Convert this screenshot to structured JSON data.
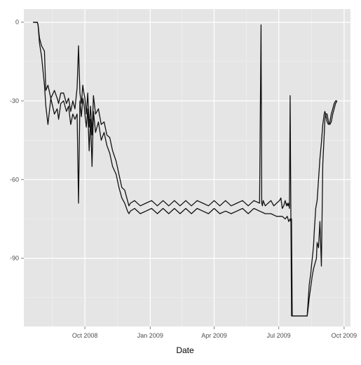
{
  "chart_data": {
    "type": "line",
    "title": "",
    "xlabel": "Date",
    "ylabel": "",
    "x_ticks": [
      "Oct 2008",
      "Jan 2009",
      "Apr 2009",
      "Jul 2009",
      "Oct 2009"
    ],
    "y_ticks": [
      0,
      -30,
      -60,
      -90
    ],
    "xlim": [
      "2008-07-07",
      "2009-10-10"
    ],
    "ylim": [
      -116,
      5
    ],
    "grid": true,
    "panel_background": "#e5e5e5",
    "grid_color": "#ffffff",
    "line_color": "#111111",
    "series": [
      {
        "x": [
          "2008-07-20",
          "2008-07-26",
          "2008-07-27",
          "2008-07-29",
          "2008-08-01",
          "2008-08-05",
          "2008-08-07",
          "2008-08-10",
          "2008-08-14",
          "2008-08-19",
          "2008-08-23",
          "2008-08-25",
          "2008-08-28",
          "2008-09-01",
          "2008-09-05",
          "2008-09-08",
          "2008-09-11",
          "2008-09-14",
          "2008-09-17",
          "2008-09-20",
          "2008-09-22",
          "2008-09-24",
          "2008-09-26",
          "2008-09-28",
          "2008-09-29",
          "2008-10-01",
          "2008-10-03",
          "2008-10-05",
          "2008-10-07",
          "2008-10-09",
          "2008-10-11",
          "2008-10-13",
          "2008-10-16",
          "2008-10-20",
          "2008-10-24",
          "2008-10-28",
          "2008-11-01",
          "2008-11-05",
          "2008-11-09",
          "2008-11-14",
          "2008-11-18",
          "2008-11-22",
          "2008-11-26",
          "2008-11-30",
          "2008-12-02",
          "2008-12-04",
          "2008-12-10",
          "2008-12-18",
          "2008-12-26",
          "2009-01-03",
          "2009-01-11",
          "2009-01-19",
          "2009-01-27",
          "2009-02-04",
          "2009-02-12",
          "2009-02-20",
          "2009-02-28",
          "2009-03-08",
          "2009-03-16",
          "2009-03-24",
          "2009-04-01",
          "2009-04-09",
          "2009-04-17",
          "2009-04-25",
          "2009-05-03",
          "2009-05-11",
          "2009-05-19",
          "2009-05-27",
          "2009-06-04",
          "2009-06-06",
          "2009-06-07",
          "2009-06-08",
          "2009-06-09",
          "2009-06-12",
          "2009-06-16",
          "2009-06-20",
          "2009-06-24",
          "2009-06-28",
          "2009-07-02",
          "2009-07-04",
          "2009-07-06",
          "2009-07-08",
          "2009-07-10",
          "2009-07-12",
          "2009-07-13",
          "2009-07-14",
          "2009-07-15",
          "2009-07-16",
          "2009-07-17",
          "2009-07-18",
          "2009-07-19",
          "2009-07-20",
          "2009-07-30",
          "2009-08-10",
          "2009-08-11",
          "2009-08-13",
          "2009-08-15",
          "2009-08-16",
          "2009-08-18",
          "2009-08-19",
          "2009-08-20",
          "2009-08-22",
          "2009-08-24",
          "2009-08-26",
          "2009-08-28",
          "2009-08-30",
          "2009-09-01",
          "2009-09-03",
          "2009-09-04",
          "2009-09-05",
          "2009-09-07",
          "2009-09-09",
          "2009-09-11",
          "2009-09-13",
          "2009-09-15",
          "2009-09-17",
          "2009-09-19",
          "2009-09-21"
        ],
        "values": [
          0,
          0,
          -1,
          -6,
          -9,
          -11,
          -26,
          -24,
          -29,
          -26,
          -29,
          -31,
          -27,
          -27,
          -31,
          -29,
          -34,
          -30,
          -33,
          -25,
          -9,
          -27,
          -31,
          -24,
          -26,
          -29,
          -35,
          -27,
          -40,
          -32,
          -43,
          -28,
          -35,
          -33,
          -39,
          -38,
          -43,
          -44,
          -49,
          -53,
          -58,
          -63,
          -64,
          -68,
          -70,
          -69,
          -68,
          -70,
          -69,
          -68,
          -70,
          -68,
          -70,
          -68,
          -70,
          -68,
          -70,
          -68,
          -69,
          -70,
          -68,
          -70,
          -68,
          -70,
          -69,
          -68,
          -70,
          -68,
          -69,
          -1,
          -69,
          -70,
          -68,
          -70,
          -69,
          -68,
          -70,
          -69,
          -68,
          -67,
          -71,
          -70,
          -68,
          -70,
          -69,
          -70,
          -69,
          -71,
          -28,
          -70,
          -112,
          -112,
          -112,
          -112,
          -108,
          -100,
          -96,
          -93,
          -88,
          -85,
          -80,
          -71,
          -68,
          -60,
          -52,
          -46,
          -39,
          -35,
          -34,
          -35,
          -38,
          -39,
          -38,
          -35,
          -33,
          -31,
          -30,
          -30
        ]
      },
      {
        "x": [
          "2008-07-20",
          "2008-07-26",
          "2008-07-27",
          "2008-07-29",
          "2008-08-01",
          "2008-08-05",
          "2008-08-07",
          "2008-08-10",
          "2008-08-14",
          "2008-08-19",
          "2008-08-23",
          "2008-08-25",
          "2008-08-28",
          "2008-09-01",
          "2008-09-05",
          "2008-09-08",
          "2008-09-11",
          "2008-09-14",
          "2008-09-17",
          "2008-09-20",
          "2008-09-22",
          "2008-09-24",
          "2008-09-26",
          "2008-09-28",
          "2008-09-30",
          "2008-10-01",
          "2008-10-03",
          "2008-10-05",
          "2008-10-07",
          "2008-10-09",
          "2008-10-11",
          "2008-10-13",
          "2008-10-16",
          "2008-10-20",
          "2008-10-24",
          "2008-10-28",
          "2008-11-01",
          "2008-11-05",
          "2008-11-09",
          "2008-11-14",
          "2008-11-18",
          "2008-11-22",
          "2008-11-26",
          "2008-11-30",
          "2008-12-02",
          "2008-12-04",
          "2008-12-10",
          "2008-12-18",
          "2008-12-26",
          "2009-01-03",
          "2009-01-11",
          "2009-01-19",
          "2009-01-27",
          "2009-02-04",
          "2009-02-12",
          "2009-02-20",
          "2009-02-28",
          "2009-03-08",
          "2009-03-16",
          "2009-03-24",
          "2009-04-01",
          "2009-04-09",
          "2009-04-17",
          "2009-04-25",
          "2009-05-03",
          "2009-05-11",
          "2009-05-19",
          "2009-05-27",
          "2009-06-04",
          "2009-06-12",
          "2009-06-20",
          "2009-06-28",
          "2009-07-02",
          "2009-07-06",
          "2009-07-10",
          "2009-07-13",
          "2009-07-15",
          "2009-07-17",
          "2009-07-18",
          "2009-07-19",
          "2009-07-20",
          "2009-07-30",
          "2009-08-10",
          "2009-08-11",
          "2009-08-13",
          "2009-08-15",
          "2009-08-17",
          "2009-08-19",
          "2009-08-20",
          "2009-08-22",
          "2009-08-23",
          "2009-08-24",
          "2009-08-26",
          "2009-08-28",
          "2009-08-30",
          "2009-09-01",
          "2009-09-03",
          "2009-09-04",
          "2009-09-05",
          "2009-09-07",
          "2009-09-09",
          "2009-09-11",
          "2009-09-13",
          "2009-09-15",
          "2009-09-17",
          "2009-09-19",
          "2009-09-21"
        ],
        "values": [
          0,
          0,
          -1,
          -8,
          -13,
          -24,
          -32,
          -39,
          -29,
          -35,
          -33,
          -37,
          -31,
          -30,
          -34,
          -32,
          -39,
          -35,
          -37,
          -35,
          -69,
          -30,
          -36,
          -29,
          -32,
          -35,
          -40,
          -33,
          -49,
          -37,
          -55,
          -34,
          -42,
          -38,
          -45,
          -42,
          -47,
          -50,
          -55,
          -58,
          -63,
          -67,
          -69,
          -72,
          -73,
          -72,
          -71,
          -73,
          -72,
          -71,
          -73,
          -71,
          -73,
          -71,
          -73,
          -71,
          -73,
          -71,
          -72,
          -73,
          -71,
          -73,
          -72,
          -73,
          -72,
          -71,
          -73,
          -71,
          -72,
          -73,
          -73,
          -74,
          -74,
          -74,
          -75,
          -74,
          -76,
          -75,
          -76,
          -75,
          -112,
          -112,
          -112,
          -110,
          -105,
          -101,
          -97,
          -94,
          -93,
          -91,
          -90,
          -84,
          -86,
          -76,
          -93,
          -54,
          -43,
          -37,
          -35,
          -35,
          -38,
          -39,
          -38,
          -35,
          -33,
          -31,
          -30
        ]
      }
    ]
  }
}
